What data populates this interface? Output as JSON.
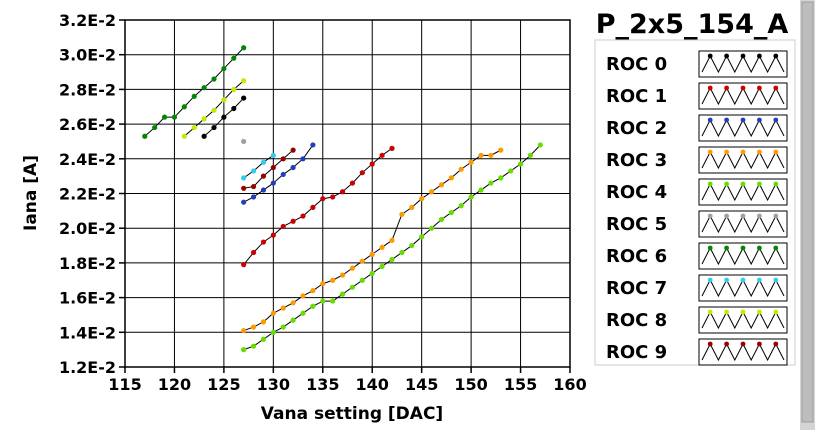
{
  "chart_data": {
    "type": "line",
    "title": "P_2x5_154_A",
    "xlabel": "Vana setting [DAC]",
    "ylabel": "Iana [A]",
    "xlim": [
      115,
      160
    ],
    "ylim": [
      0.012,
      0.032
    ],
    "x_ticks": [
      115,
      120,
      125,
      130,
      135,
      140,
      145,
      150,
      155,
      160
    ],
    "x_tick_labels": [
      "115",
      "120",
      "125",
      "130",
      "135",
      "140",
      "145",
      "150",
      "155",
      "160"
    ],
    "y_ticks": [
      0.012,
      0.014,
      0.016,
      0.018,
      0.02,
      0.022,
      0.024,
      0.026,
      0.028,
      0.03,
      0.032
    ],
    "y_tick_labels": [
      "1.2E-2",
      "1.4E-2",
      "1.6E-2",
      "1.8E-2",
      "2.0E-2",
      "2.2E-2",
      "2.4E-2",
      "2.6E-2",
      "2.8E-2",
      "3.0E-2",
      "3.2E-2"
    ],
    "grid": true,
    "legend_position": "right",
    "series": [
      {
        "name": "ROC 0",
        "color": "#000000",
        "x": [
          123,
          124,
          125,
          126,
          127
        ],
        "y": [
          0.0253,
          0.0258,
          0.0264,
          0.0269,
          0.0275
        ]
      },
      {
        "name": "ROC 1",
        "color": "#cc0000",
        "x": [
          127,
          128,
          129,
          130,
          131,
          132,
          133,
          134,
          135,
          136,
          137,
          138,
          139,
          140,
          141,
          142
        ],
        "y": [
          0.0179,
          0.0186,
          0.0192,
          0.0196,
          0.0201,
          0.0204,
          0.0207,
          0.0212,
          0.0217,
          0.0218,
          0.0221,
          0.0226,
          0.0232,
          0.0237,
          0.0242,
          0.0246
        ]
      },
      {
        "name": "ROC 2",
        "color": "#1f3fbf",
        "x": [
          127,
          128,
          129,
          130,
          131,
          132,
          133,
          134
        ],
        "y": [
          0.0215,
          0.0218,
          0.0222,
          0.0226,
          0.0231,
          0.0235,
          0.024,
          0.0248
        ]
      },
      {
        "name": "ROC 3",
        "color": "#ff9900",
        "x": [
          127,
          128,
          129,
          130,
          131,
          132,
          133,
          134,
          135,
          136,
          137,
          138,
          139,
          140,
          141,
          142,
          143,
          144,
          145,
          146,
          147,
          148,
          149,
          150,
          151,
          152,
          153
        ],
        "y": [
          0.0141,
          0.0143,
          0.0146,
          0.0151,
          0.0154,
          0.0157,
          0.0161,
          0.0164,
          0.0168,
          0.017,
          0.0173,
          0.0177,
          0.0181,
          0.0185,
          0.0189,
          0.0193,
          0.0208,
          0.0212,
          0.0217,
          0.0221,
          0.0225,
          0.0229,
          0.0234,
          0.0238,
          0.0242,
          0.0242,
          0.0245
        ]
      },
      {
        "name": "ROC 4",
        "color": "#66dd00",
        "x": [
          127,
          128,
          129,
          130,
          131,
          132,
          133,
          134,
          135,
          136,
          137,
          138,
          139,
          140,
          141,
          142,
          143,
          144,
          145,
          146,
          147,
          148,
          149,
          150,
          151,
          152,
          153,
          154,
          155,
          156,
          157
        ],
        "y": [
          0.013,
          0.0132,
          0.0136,
          0.014,
          0.0143,
          0.0147,
          0.0151,
          0.0155,
          0.0158,
          0.0158,
          0.0162,
          0.0166,
          0.017,
          0.0174,
          0.0178,
          0.0182,
          0.0186,
          0.019,
          0.0195,
          0.02,
          0.0205,
          0.0209,
          0.0213,
          0.0218,
          0.0222,
          0.0226,
          0.0229,
          0.0233,
          0.0237,
          0.0242,
          0.0248
        ]
      },
      {
        "name": "ROC 5",
        "color": "#a0a0a0",
        "x": [
          127
        ],
        "y": [
          0.025
        ]
      },
      {
        "name": "ROC 6",
        "color": "#008800",
        "x": [
          117,
          118,
          119,
          120,
          121,
          122,
          123,
          124,
          125,
          126,
          127
        ],
        "y": [
          0.0253,
          0.0258,
          0.0264,
          0.0264,
          0.027,
          0.0276,
          0.0281,
          0.0286,
          0.0292,
          0.0298,
          0.0304
        ]
      },
      {
        "name": "ROC 7",
        "color": "#33ccee",
        "x": [
          127,
          128,
          129,
          130
        ],
        "y": [
          0.0229,
          0.0233,
          0.0238,
          0.0242
        ]
      },
      {
        "name": "ROC 8",
        "color": "#bbee00",
        "x": [
          121,
          122,
          123,
          124,
          125,
          126,
          127
        ],
        "y": [
          0.0253,
          0.0258,
          0.0263,
          0.0268,
          0.0274,
          0.028,
          0.0285
        ]
      },
      {
        "name": "ROC 9",
        "color": "#990000",
        "x": [
          127,
          128,
          129,
          130,
          131,
          132
        ],
        "y": [
          0.0223,
          0.0224,
          0.023,
          0.0235,
          0.024,
          0.0245
        ]
      }
    ]
  }
}
